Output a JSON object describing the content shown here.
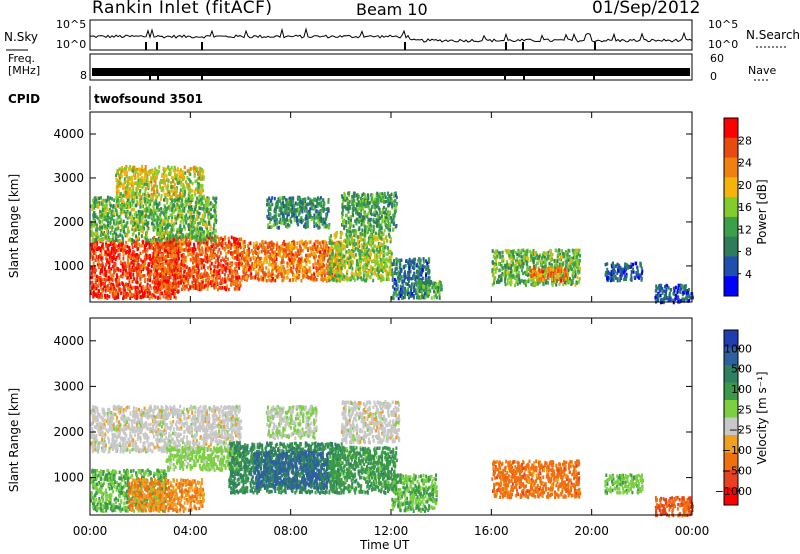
{
  "header": {
    "title": "Rankin Inlet (fitACF)",
    "beam": "Beam 10",
    "date": "01/Sep/2012"
  },
  "top_panels": {
    "nsky_label": "N.Sky",
    "nsky_top": "10^5",
    "nsky_bottom": "10^0",
    "nsearch_label": "N.Search",
    "nsearch_top": "10^5",
    "nsearch_bottom": "10^0",
    "freq_label": "Freq.",
    "freq_unit": "[MHz]",
    "freq_tick": "8",
    "nave_label": "Nave",
    "nave_top": "60",
    "nave_bottom": "0",
    "cpid_label": "CPID",
    "cpid_value": "twofsound 3501"
  },
  "colors": {
    "power_scale": [
      "#0000ff",
      "#1f4faf",
      "#2e7d5a",
      "#3aa04a",
      "#84cc2c",
      "#f5b40a",
      "#f08010",
      "#e84a10",
      "#ff0000"
    ],
    "velocity_scale": [
      "#1f3fb0",
      "#2e5f9f",
      "#2e8060",
      "#3a9a4a",
      "#7ad040",
      "#c8c8c8",
      "#f0a020",
      "#f07010",
      "#e84020",
      "#ff0000"
    ]
  },
  "chart_data": [
    {
      "type": "heatmap",
      "name": "power",
      "xlabel": "",
      "ylabel": "Slant Range [km]",
      "x_ticks": [
        "00:00",
        "04:00",
        "08:00",
        "12:00",
        "16:00",
        "20:00",
        "00:00"
      ],
      "x_range_hours": [
        0,
        24
      ],
      "y_ticks": [
        1000,
        2000,
        3000,
        4000
      ],
      "y_range_km": [
        180,
        4500
      ],
      "colorbar_label": "Power [dB]",
      "colorbar_ticks": [
        4,
        8,
        12,
        16,
        20,
        24,
        28
      ],
      "colorbar_range": [
        0,
        32
      ],
      "regions": [
        {
          "t": [
            0,
            3.5
          ],
          "r": [
            300,
            1600
          ],
          "v": 28
        },
        {
          "t": [
            2.5,
            6.0
          ],
          "r": [
            500,
            1700
          ],
          "v": 26
        },
        {
          "t": [
            6.0,
            10.0
          ],
          "r": [
            700,
            1600
          ],
          "v": 24
        },
        {
          "t": [
            9.5,
            12.0
          ],
          "r": [
            700,
            1800
          ],
          "v": 16
        },
        {
          "t": [
            10.0,
            12.2
          ],
          "r": [
            1800,
            2700
          ],
          "v": 12
        },
        {
          "t": [
            0,
            5.0
          ],
          "r": [
            1600,
            2600
          ],
          "v": 14
        },
        {
          "t": [
            1.0,
            4.5
          ],
          "r": [
            2600,
            3300
          ],
          "v": 18
        },
        {
          "t": [
            7.0,
            9.5
          ],
          "r": [
            1900,
            2600
          ],
          "v": 10
        },
        {
          "t": [
            12.0,
            13.5
          ],
          "r": [
            300,
            1200
          ],
          "v": 8
        },
        {
          "t": [
            13.0,
            14.0
          ],
          "r": [
            300,
            700
          ],
          "v": 12
        },
        {
          "t": [
            16.0,
            19.5
          ],
          "r": [
            600,
            1400
          ],
          "v": 14
        },
        {
          "t": [
            17.5,
            19.0
          ],
          "r": [
            700,
            1000
          ],
          "v": 24
        },
        {
          "t": [
            20.5,
            22.0
          ],
          "r": [
            700,
            1100
          ],
          "v": 6
        },
        {
          "t": [
            22.5,
            24.0
          ],
          "r": [
            200,
            600
          ],
          "v": 6
        }
      ]
    },
    {
      "type": "heatmap",
      "name": "velocity",
      "xlabel": "Time UT",
      "ylabel": "Slant Range [km]",
      "x_ticks": [
        "00:00",
        "04:00",
        "08:00",
        "12:00",
        "16:00",
        "20:00",
        "00:00"
      ],
      "x_range_hours": [
        0,
        24
      ],
      "y_ticks": [
        1000,
        2000,
        3000,
        4000
      ],
      "y_range_km": [
        180,
        4500
      ],
      "colorbar_label": "Velocity [m s⁻¹]",
      "colorbar_ticks": [
        "1000",
        "500",
        "100",
        "25",
        "−25",
        "−100",
        "−500",
        "−1000"
      ],
      "regions": [
        {
          "t": [
            0,
            3.0
          ],
          "r": [
            300,
            1200
          ],
          "v": 100
        },
        {
          "t": [
            1.5,
            4.5
          ],
          "r": [
            300,
            1000
          ],
          "v": -100
        },
        {
          "t": [
            0,
            6.0
          ],
          "r": [
            1600,
            2600
          ],
          "v": 0
        },
        {
          "t": [
            3.0,
            6.0
          ],
          "r": [
            1200,
            1700
          ],
          "v": 50
        },
        {
          "t": [
            5.5,
            10.0
          ],
          "r": [
            700,
            1800
          ],
          "v": 200
        },
        {
          "t": [
            6.5,
            9.5
          ],
          "r": [
            800,
            1600
          ],
          "v": 600
        },
        {
          "t": [
            9.5,
            12.2
          ],
          "r": [
            700,
            1700
          ],
          "v": 150
        },
        {
          "t": [
            10.0,
            12.3
          ],
          "r": [
            1800,
            2700
          ],
          "v": 0
        },
        {
          "t": [
            7.0,
            9.0
          ],
          "r": [
            1900,
            2600
          ],
          "v": 20
        },
        {
          "t": [
            12.0,
            13.8
          ],
          "r": [
            300,
            1100
          ],
          "v": 100
        },
        {
          "t": [
            16.0,
            19.5
          ],
          "r": [
            600,
            1400
          ],
          "v": -150
        },
        {
          "t": [
            20.5,
            22.0
          ],
          "r": [
            700,
            1100
          ],
          "v": 80
        },
        {
          "t": [
            22.5,
            24.0
          ],
          "r": [
            200,
            600
          ],
          "v": -200
        }
      ]
    }
  ]
}
